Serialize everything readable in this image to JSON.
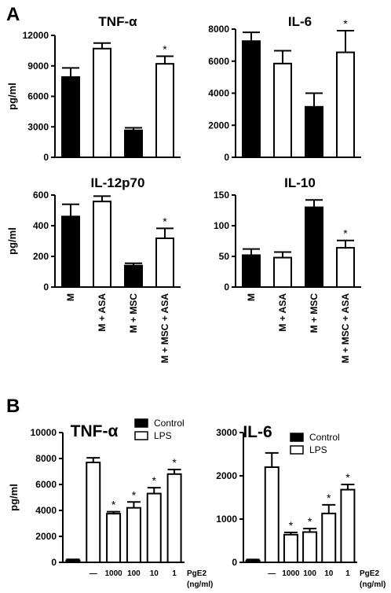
{
  "panel_labels": [
    "A",
    "B"
  ],
  "chart_data": [
    {
      "id": "a1",
      "type": "bar",
      "title": "TNF-α",
      "ylabel": "pg/ml",
      "ylim": [
        0,
        12000
      ],
      "yticks": [
        0,
        3000,
        6000,
        9000,
        12000
      ],
      "categories": [
        "M",
        "M + ASA",
        "M + MSC",
        "M + MSC + ASA"
      ],
      "show_category_labels": false,
      "values": [
        7900,
        10700,
        2650,
        9200
      ],
      "errors": [
        900,
        550,
        250,
        750
      ],
      "bar_colors": [
        "#000000",
        "#ffffff",
        "#000000",
        "#ffffff"
      ],
      "annotations": [
        "",
        "",
        "",
        "*"
      ]
    },
    {
      "id": "a2",
      "type": "bar",
      "title": "IL-6",
      "ylabel": "",
      "ylim": [
        0,
        8000
      ],
      "yticks": [
        0,
        2000,
        4000,
        6000,
        8000
      ],
      "categories": [
        "M",
        "M + ASA",
        "M + MSC",
        "M + MSC + ASA"
      ],
      "show_category_labels": false,
      "values": [
        7250,
        5850,
        3150,
        6550
      ],
      "errors": [
        550,
        800,
        850,
        1350
      ],
      "bar_colors": [
        "#000000",
        "#ffffff",
        "#000000",
        "#ffffff"
      ],
      "annotations": [
        "",
        "",
        "",
        "*"
      ]
    },
    {
      "id": "a3",
      "type": "bar",
      "title": "IL-12p70",
      "ylabel": "pg/ml",
      "ylim": [
        0,
        600
      ],
      "yticks": [
        0,
        200,
        400,
        600
      ],
      "categories": [
        "M",
        "M + ASA",
        "M + MSC",
        "M + MSC + ASA"
      ],
      "show_category_labels": true,
      "values": [
        460,
        558,
        140,
        318
      ],
      "errors": [
        80,
        35,
        15,
        65
      ],
      "bar_colors": [
        "#000000",
        "#ffffff",
        "#000000",
        "#ffffff"
      ],
      "annotations": [
        "",
        "",
        "",
        "*"
      ]
    },
    {
      "id": "a4",
      "type": "bar",
      "title": "IL-10",
      "ylabel": "",
      "ylim": [
        0,
        150
      ],
      "yticks": [
        0,
        50,
        100,
        150
      ],
      "categories": [
        "M",
        "M + ASA",
        "M + MSC",
        "M + MSC + ASA"
      ],
      "show_category_labels": true,
      "values": [
        52,
        48,
        130,
        64
      ],
      "errors": [
        10,
        9,
        12,
        12
      ],
      "bar_colors": [
        "#000000",
        "#ffffff",
        "#000000",
        "#ffffff"
      ],
      "annotations": [
        "",
        "",
        "",
        "*"
      ]
    },
    {
      "id": "b1",
      "type": "bar",
      "title": "TNF-α",
      "ylabel": "pg/ml",
      "ylim": [
        0,
        10000
      ],
      "yticks": [
        0,
        2000,
        4000,
        6000,
        8000,
        10000
      ],
      "categories": [
        "",
        "—",
        "1000",
        "100",
        "10",
        "1"
      ],
      "show_category_labels": true,
      "series_index": [
        0,
        1,
        1,
        1,
        1,
        1
      ],
      "values": [
        150,
        7700,
        3750,
        4200,
        5300,
        6800
      ],
      "errors": [
        80,
        350,
        150,
        450,
        450,
        350
      ],
      "bar_colors": [
        "#000000",
        "#ffffff",
        "#ffffff",
        "#ffffff",
        "#ffffff",
        "#ffffff"
      ],
      "annotations": [
        "",
        "",
        "*",
        "*",
        "*",
        "*"
      ],
      "xunit_name": "PgE2",
      "xunit": "(ng/ml)",
      "legend": [
        {
          "name": "Control",
          "color": "#000000"
        },
        {
          "name": "LPS",
          "color": "#ffffff"
        }
      ],
      "legend_position": "top-right"
    },
    {
      "id": "b2",
      "type": "bar",
      "title": "IL-6",
      "ylabel": "",
      "ylim": [
        0,
        3000
      ],
      "yticks": [
        0,
        1000,
        2000,
        3000
      ],
      "categories": [
        "",
        "—",
        "1000",
        "100",
        "10",
        "1"
      ],
      "show_category_labels": true,
      "series_index": [
        0,
        1,
        1,
        1,
        1,
        1
      ],
      "values": [
        40,
        2200,
        640,
        700,
        1130,
        1680
      ],
      "errors": [
        25,
        330,
        50,
        80,
        200,
        120
      ],
      "bar_colors": [
        "#000000",
        "#ffffff",
        "#ffffff",
        "#ffffff",
        "#ffffff",
        "#ffffff"
      ],
      "annotations": [
        "",
        "",
        "*",
        "*",
        "*",
        "*"
      ],
      "xunit_name": "PgE2",
      "xunit": "(ng/ml)",
      "legend": [
        {
          "name": "Control",
          "color": "#000000"
        },
        {
          "name": "LPS",
          "color": "#ffffff"
        }
      ],
      "legend_position": "top-right"
    }
  ]
}
